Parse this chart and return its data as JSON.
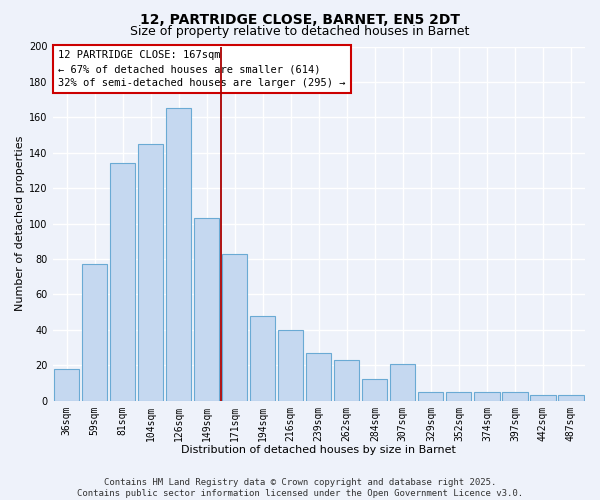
{
  "title": "12, PARTRIDGE CLOSE, BARNET, EN5 2DT",
  "subtitle": "Size of property relative to detached houses in Barnet",
  "xlabel": "Distribution of detached houses by size in Barnet",
  "ylabel": "Number of detached properties",
  "categories": [
    "36sqm",
    "59sqm",
    "81sqm",
    "104sqm",
    "126sqm",
    "149sqm",
    "171sqm",
    "194sqm",
    "216sqm",
    "239sqm",
    "262sqm",
    "284sqm",
    "307sqm",
    "329sqm",
    "352sqm",
    "374sqm",
    "397sqm",
    "442sqm",
    "487sqm"
  ],
  "values": [
    18,
    77,
    134,
    145,
    165,
    103,
    83,
    48,
    40,
    27,
    23,
    12,
    21,
    5,
    5,
    5,
    5,
    3,
    3
  ],
  "bar_color": "#c5d8f0",
  "bar_edge_color": "#6aaad4",
  "vline_x_index": 6,
  "vline_color": "#aa0000",
  "annotation_lines": [
    "12 PARTRIDGE CLOSE: 167sqm",
    "← 67% of detached houses are smaller (614)",
    "32% of semi-detached houses are larger (295) →"
  ],
  "annotation_box_color": "#ffffff",
  "annotation_box_edge": "#cc0000",
  "ylim": [
    0,
    200
  ],
  "yticks": [
    0,
    20,
    40,
    60,
    80,
    100,
    120,
    140,
    160,
    180,
    200
  ],
  "background_color": "#eef2fa",
  "grid_color": "#ffffff",
  "footer_lines": [
    "Contains HM Land Registry data © Crown copyright and database right 2025.",
    "Contains public sector information licensed under the Open Government Licence v3.0."
  ],
  "title_fontsize": 10,
  "subtitle_fontsize": 9,
  "axis_label_fontsize": 8,
  "tick_fontsize": 7,
  "annotation_fontsize": 7.5,
  "footer_fontsize": 6.5
}
